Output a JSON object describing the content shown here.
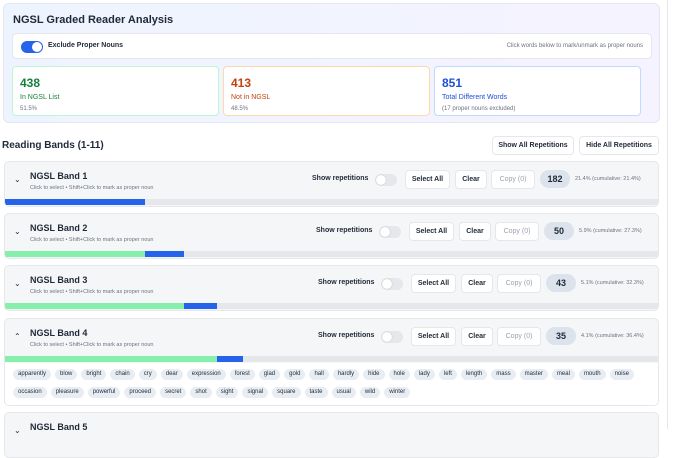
{
  "title": "NGSL Graded Reader Analysis",
  "exclude_toggle": {
    "label": "Exclude Proper Nouns",
    "on": true
  },
  "hint": "Click words below to mark/unmark as proper nouns",
  "stats": [
    {
      "value": "438",
      "label": "In NGSL List",
      "sub": "51.5%",
      "color": "#15803d",
      "border": "#bbf7d0"
    },
    {
      "value": "413",
      "label": "Not in NGSL",
      "sub": "48.5%",
      "color": "#c2410c",
      "border": "#fed7aa"
    },
    {
      "value": "851",
      "label": "Total Different Words",
      "sub": "(17 proper nouns excluded)",
      "color": "#1d4ed8",
      "border": "#bfdbfe"
    }
  ],
  "section_title": "Reading Bands (1-11)",
  "show_all": "Show All Repetitions",
  "hide_all": "Hide All Repetitions",
  "band_sub": "Click to select • Shift+Click to mark as proper noun",
  "labels": {
    "show_rep": "Show repetitions",
    "select_all": "Select All",
    "clear": "Clear",
    "copy": "Copy (0)"
  },
  "bands": [
    {
      "name": "NGSL Band 1",
      "count": "182",
      "pct": "21.4% (cumulative: 21.4%)",
      "prev_cum": 0,
      "cum": 21.4,
      "expanded": false
    },
    {
      "name": "NGSL Band 2",
      "count": "50",
      "pct": "5.9% (cumulative: 27.3%)",
      "prev_cum": 21.4,
      "cum": 27.3,
      "expanded": false
    },
    {
      "name": "NGSL Band 3",
      "count": "43",
      "pct": "5.1% (cumulative: 32.3%)",
      "prev_cum": 27.3,
      "cum": 32.3,
      "expanded": false
    },
    {
      "name": "NGSL Band 4",
      "count": "35",
      "pct": "4.1% (cumulative: 36.4%)",
      "prev_cum": 32.3,
      "cum": 36.4,
      "expanded": true,
      "words": [
        "apparently",
        "blow",
        "bright",
        "chain",
        "cry",
        "dear",
        "expression",
        "forest",
        "glad",
        "gold",
        "hall",
        "hardly",
        "hide",
        "hole",
        "lady",
        "left",
        "length",
        "mass",
        "master",
        "meal",
        "mouth",
        "noise",
        "occasion",
        "pleasure",
        "powerful",
        "proceed",
        "secret",
        "shot",
        "sight",
        "signal",
        "square",
        "taste",
        "usual",
        "wild",
        "winter"
      ]
    },
    {
      "name": "NGSL Band 5"
    }
  ]
}
